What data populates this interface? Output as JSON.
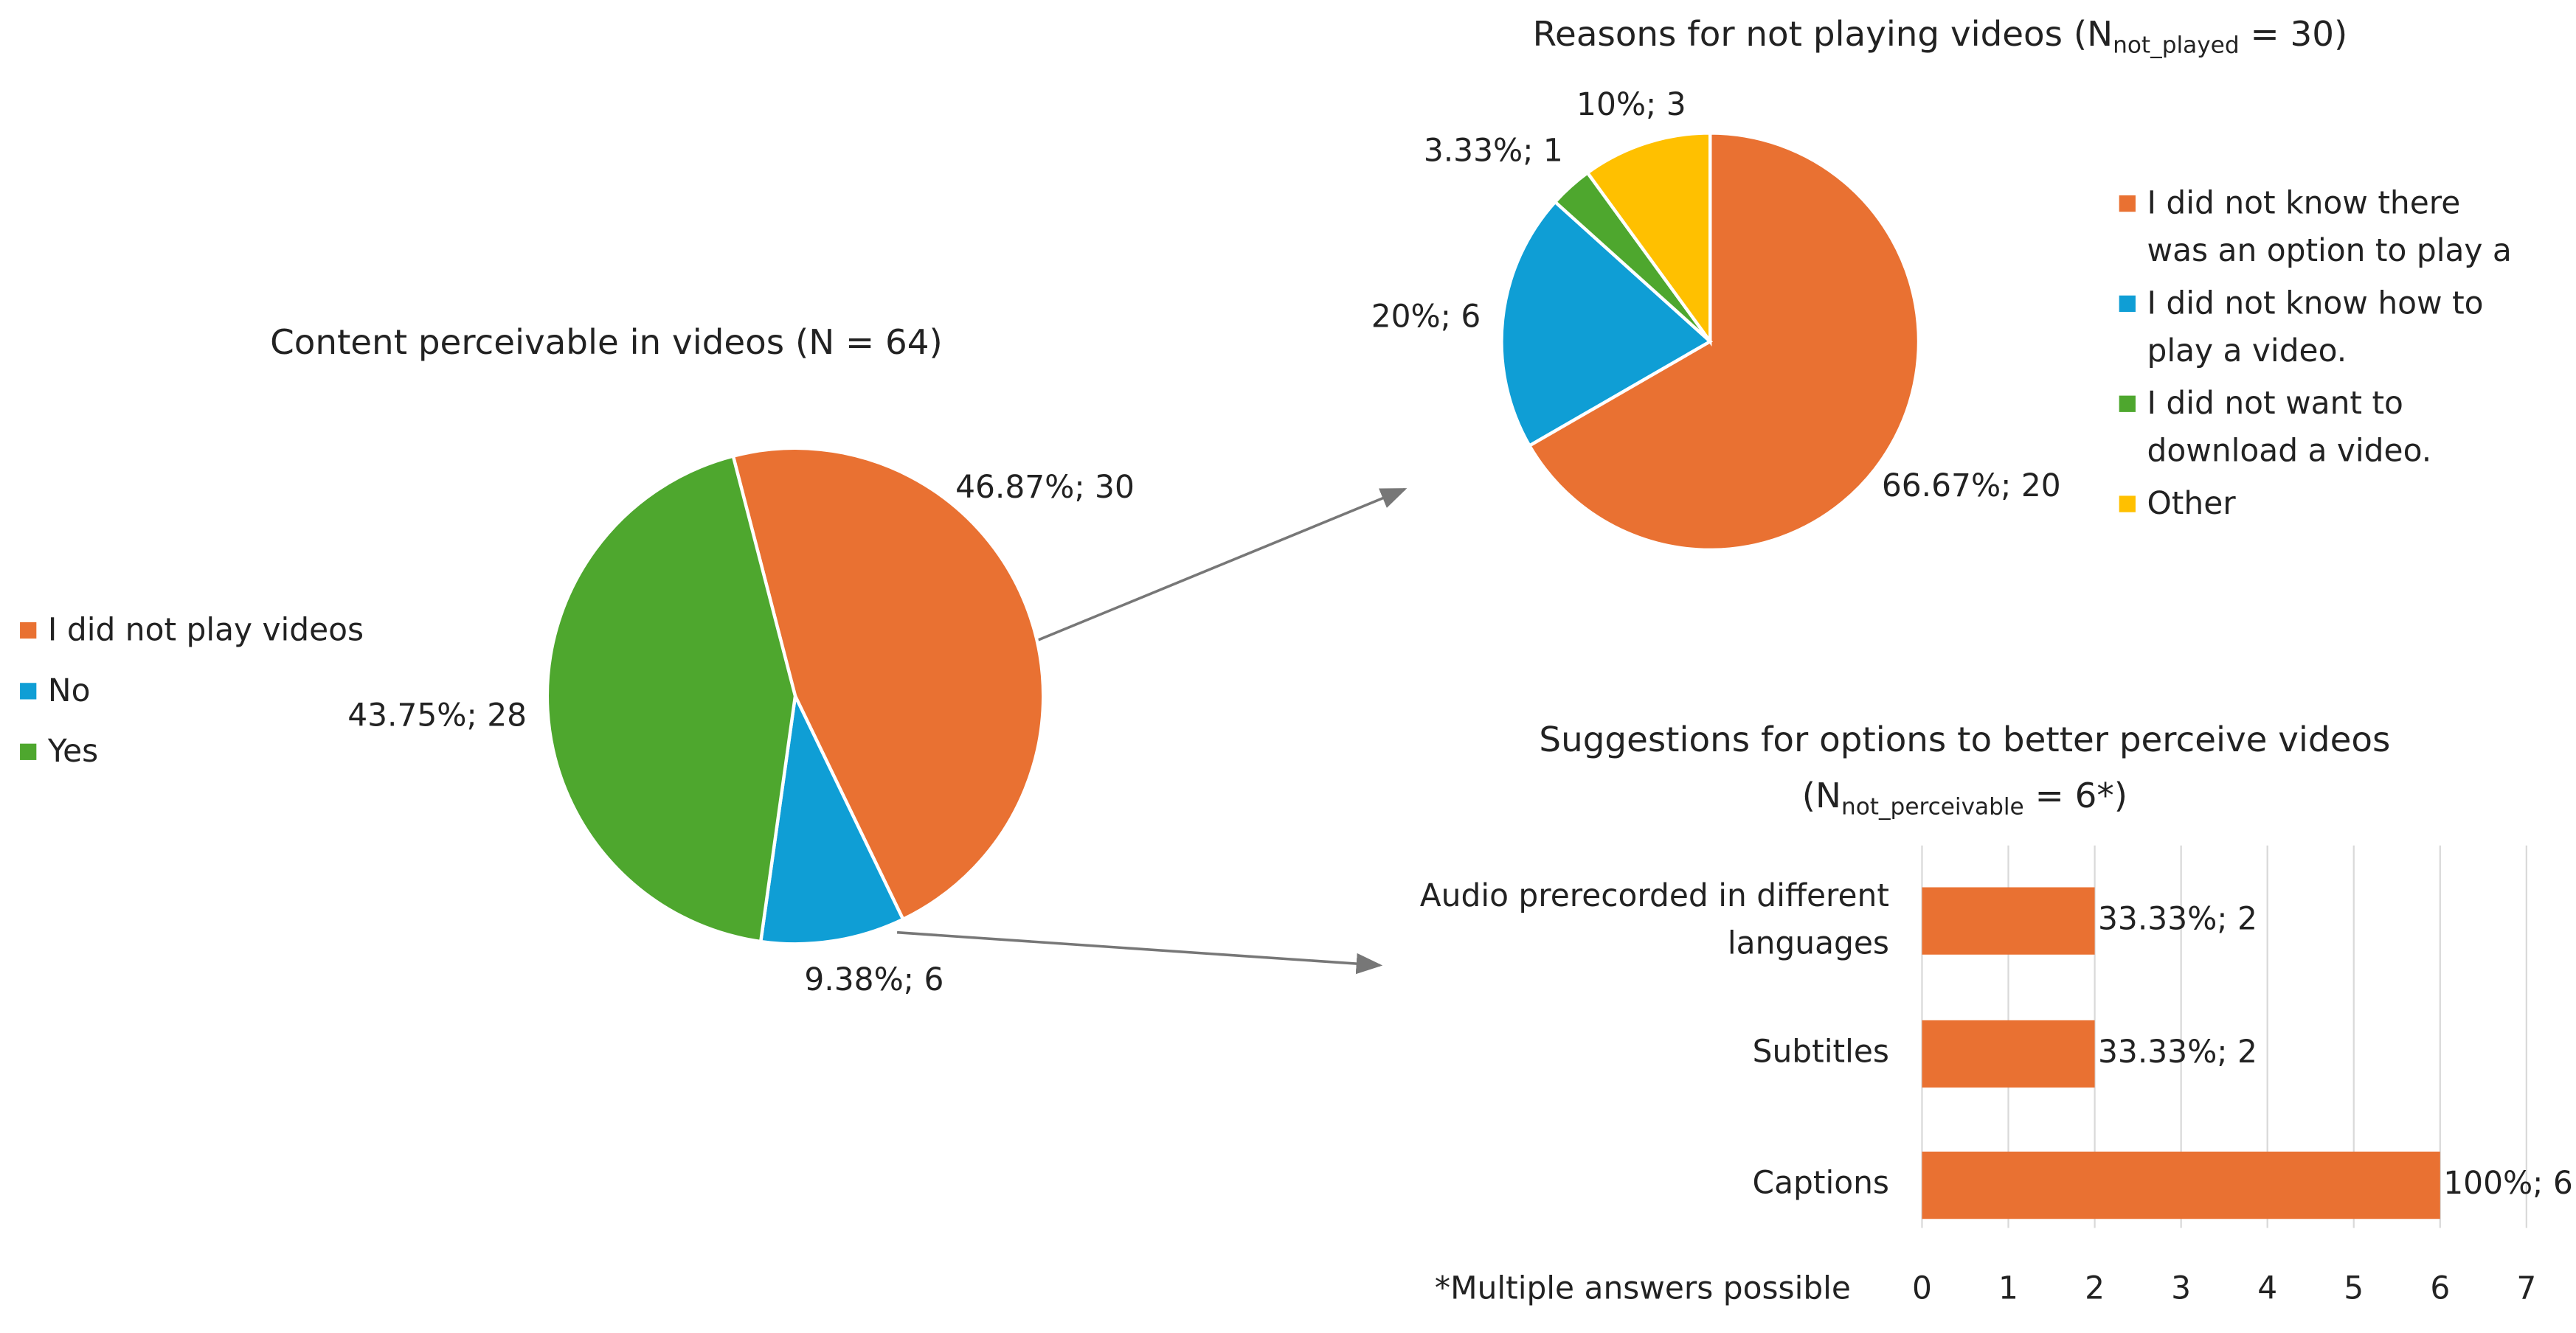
{
  "chart_data": [
    {
      "type": "pie",
      "title": "Content perceivable in videos (N = 64)",
      "categories": [
        "I did not play videos",
        "No",
        "Yes"
      ],
      "values": [
        46.87,
        9.38,
        43.75
      ],
      "value_labels": [
        "46.87%; 30",
        "9.38%; 6",
        "43.75%; 28"
      ],
      "colors": [
        "#E97132",
        "#0F9ED5",
        "#4EA72E"
      ],
      "legend": "left"
    },
    {
      "type": "pie",
      "title": "Reasons for not playing videos (N",
      "title_sub": "not_played",
      "title_tail": " = 30)",
      "categories": [
        "I did not know there was an option to play a video.",
        "I did not know how to play a video.",
        "I did not want to download a video.",
        "Other"
      ],
      "values": [
        66.67,
        20,
        3.33,
        10
      ],
      "value_labels": [
        "66.67%; 20",
        "20%; 6",
        "3.33%; 1",
        "10%; 3"
      ],
      "colors": [
        "#E97132",
        "#0F9ED5",
        "#4EA72E",
        "#FFC000"
      ],
      "legend": "right"
    },
    {
      "type": "hbar",
      "title": "Suggestions for options to better perceive videos",
      "title2": "(N",
      "title_sub": "not_perceivable",
      "title_tail": " = 6*)",
      "categories": [
        "Audio prerecorded in different languages",
        "Subtitles",
        "Captions"
      ],
      "values": [
        2,
        2,
        6
      ],
      "value_labels": [
        "33.33%; 2",
        "33.33%; 2",
        "100%; 6"
      ],
      "color": "#E97132",
      "xlim": [
        0,
        7
      ],
      "xticks": [
        0,
        1,
        2,
        3,
        4,
        5,
        6,
        7
      ],
      "grid": true,
      "note": "*Multiple answers possible"
    }
  ]
}
